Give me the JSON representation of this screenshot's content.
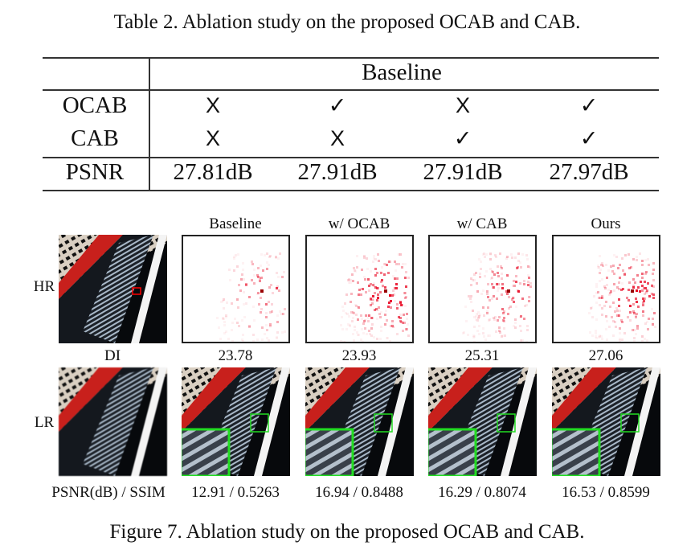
{
  "table": {
    "caption": "Table 2. Ablation study on the proposed OCAB and CAB.",
    "header": "Baseline",
    "rows": [
      {
        "label": "OCAB",
        "values": [
          "X",
          "✓",
          "X",
          "✓"
        ]
      },
      {
        "label": "CAB",
        "values": [
          "X",
          "X",
          "✓",
          "✓"
        ]
      },
      {
        "label": "PSNR",
        "values": [
          "27.81dB",
          "27.91dB",
          "27.91dB",
          "27.97dB"
        ]
      }
    ]
  },
  "figure": {
    "caption": "Figure 7. Ablation study on the proposed OCAB and CAB.",
    "row_labels": [
      "HR",
      "LR"
    ],
    "columns": [
      "Baseline",
      "w/ OCAB",
      "w/ CAB",
      "Ours"
    ],
    "di_label": "DI",
    "di_values": [
      "23.78",
      "23.93",
      "25.31",
      "27.06"
    ],
    "metric_label": "PSNR(dB) / SSIM",
    "metrics": [
      "12.91 / 0.5263",
      "16.94 / 0.8488",
      "16.29 / 0.8074",
      "16.53 / 0.8599"
    ],
    "colors": {
      "heatmap": "#e8001c",
      "zoom_box": "#22dd22",
      "hr_marker": "#ff0000"
    }
  }
}
